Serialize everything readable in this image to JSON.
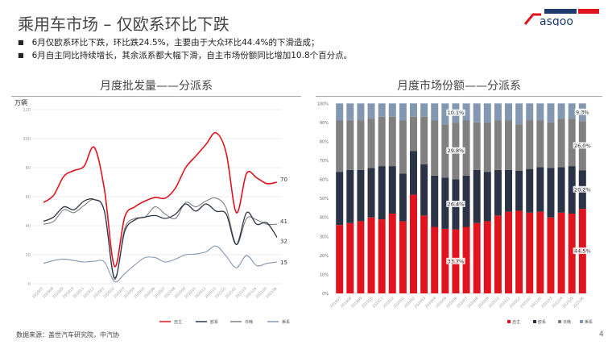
{
  "header": {
    "title": "乘用车市场 – 仅欧系环比下跌",
    "logo_text": "Gasgoo",
    "logo_sub": "盖世汽车 研究院"
  },
  "bullets": [
    "6月仅欧系环比下跌，环比跌24.5%，主要由于大众环比44.4%的下滑造成；",
    "6月自主同比持续增长，其余派系都大幅下滑，自主市场份额同比增加10.8个百分点。"
  ],
  "footer": {
    "source": "数据来源：盖世汽车研究院，中汽协",
    "page": "4"
  },
  "colors": {
    "zizhu": "#e0141e",
    "ouxi": "#2b3447",
    "rihan": "#808080",
    "meixi": "#8497b0"
  },
  "chart_data": [
    {
      "type": "line",
      "title": "月度批发量——分派系",
      "ylabel": "万辆",
      "ylim": [
        0,
        120
      ],
      "yticks": [
        0,
        20,
        40,
        60,
        80,
        100,
        120
      ],
      "grid": true,
      "legend": "bottom-right",
      "categories": [
        "201907",
        "201908",
        "201909",
        "201910",
        "201911",
        "201912",
        "202001",
        "202002",
        "202003",
        "202004",
        "202005",
        "202006",
        "202007",
        "202008",
        "202009",
        "202010",
        "202011",
        "202012",
        "202101",
        "202102",
        "202103",
        "202104",
        "202105",
        "202106"
      ],
      "series": [
        {
          "name": "自主",
          "values": [
            56,
            61,
            74,
            78,
            81,
            94,
            65,
            12,
            46,
            53,
            57,
            59.5,
            59,
            66,
            80,
            88,
            96,
            104,
            90,
            49,
            76,
            73,
            69,
            70
          ],
          "end_label": "70"
        },
        {
          "name": "欧系",
          "values": [
            43,
            46,
            53,
            51,
            57,
            58,
            50,
            4,
            36,
            44,
            46,
            47,
            45,
            48,
            55,
            50,
            55,
            50,
            48,
            27,
            49,
            41,
            42,
            32
          ],
          "end_label": "32"
        },
        {
          "name": "日韩",
          "values": [
            41,
            43,
            51,
            49,
            54,
            58,
            50,
            3,
            38,
            45,
            46,
            53,
            48,
            45,
            56,
            53,
            57,
            59,
            52,
            27,
            45,
            44,
            41,
            41
          ],
          "end_label": "41"
        },
        {
          "name": "美系",
          "values": [
            14,
            16,
            17,
            16,
            15,
            15.5,
            15,
            1.5,
            7,
            13,
            18,
            18,
            15,
            17,
            20,
            20.5,
            22,
            26,
            19,
            11,
            19.5,
            12.5,
            14,
            15
          ],
          "end_label": "15"
        }
      ]
    },
    {
      "type": "bar",
      "stacked": true,
      "title": "月度市场份额——分派系",
      "ylim": [
        0,
        100
      ],
      "yticks": [
        "0%",
        "10%",
        "20%",
        "30%",
        "40%",
        "50%",
        "60%",
        "70%",
        "80%",
        "90%",
        "100%"
      ],
      "legend": "bottom-right",
      "categories": [
        "201907",
        "201908",
        "201909",
        "201910",
        "201911",
        "201912",
        "202001",
        "202002",
        "202003",
        "202004",
        "202005",
        "202006",
        "202007",
        "202008",
        "202009",
        "202010",
        "202011",
        "202012",
        "202101",
        "202102",
        "202103",
        "202104",
        "202105",
        "202106"
      ],
      "series": [
        {
          "name": "自主",
          "values": [
            36,
            37,
            38,
            40,
            39,
            42,
            38,
            52,
            41,
            35,
            34,
            33.7,
            35,
            37,
            38,
            41,
            43,
            43.5,
            42.5,
            43,
            40,
            42.5,
            42,
            44.5
          ]
        },
        {
          "name": "欧系",
          "values": [
            28,
            28,
            27,
            26,
            28,
            25,
            25,
            23,
            27,
            27,
            27,
            26.4,
            27,
            28,
            26,
            24,
            22,
            21,
            23,
            23.5,
            26,
            24,
            25,
            20.2
          ]
        },
        {
          "name": "日韩",
          "values": [
            27,
            26,
            26,
            26,
            26,
            26,
            28,
            18,
            25,
            29,
            28,
            29.8,
            29,
            25,
            26,
            26,
            26,
            24.5,
            25.5,
            24.5,
            24,
            25.5,
            25,
            26.0
          ]
        },
        {
          "name": "美系",
          "values": [
            9,
            9,
            9,
            8,
            7,
            7,
            9,
            7,
            7,
            9,
            11,
            10.1,
            9,
            10,
            10,
            9,
            9,
            11,
            9,
            9,
            10,
            8,
            8,
            9.3
          ]
        }
      ],
      "data_labels": [
        {
          "category": "202006",
          "values": [
            "33.7%",
            "26.4%",
            "29.8%",
            "10.1%"
          ]
        },
        {
          "category": "202106",
          "values": [
            "44.5%",
            "20.2%",
            "26.0%",
            "9.3%"
          ]
        }
      ]
    }
  ]
}
